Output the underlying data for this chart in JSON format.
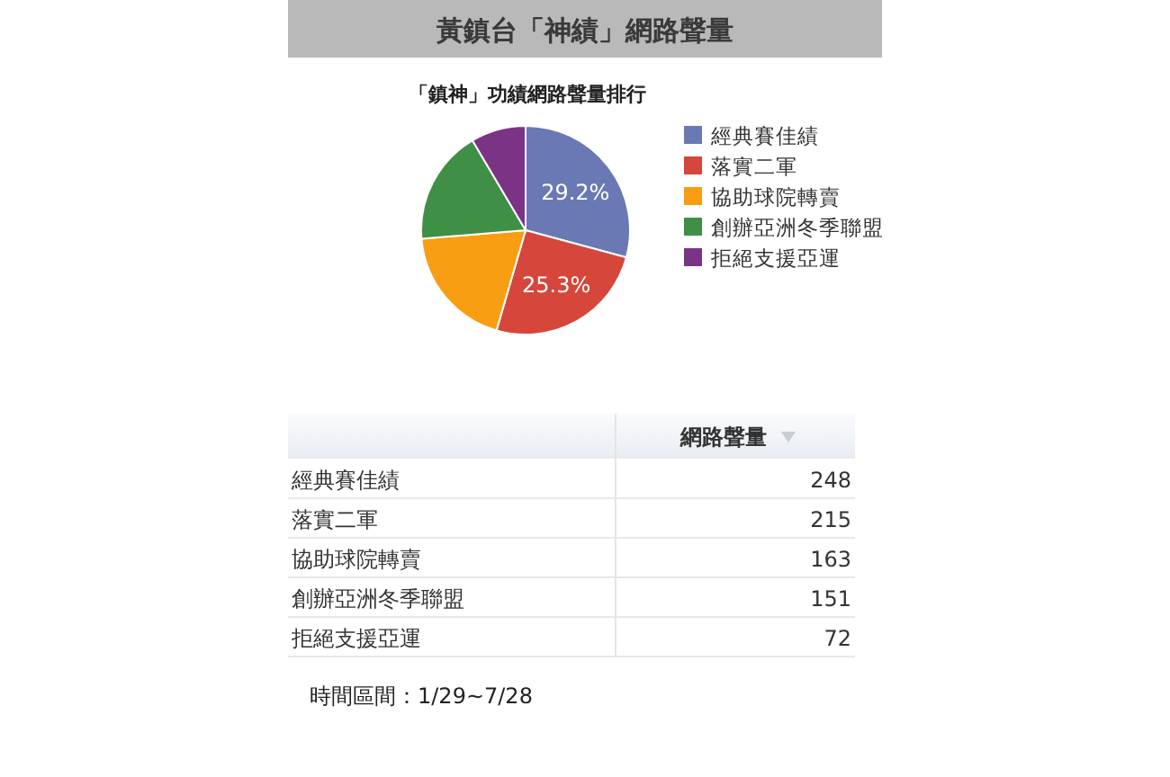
{
  "chart_data": [
    {
      "type": "pie",
      "title": "黃鎮台「神績」網路聲量",
      "subtitle": "「鎮神」功績網路聲量排行",
      "categories": [
        "經典賽佳績",
        "落實二軍",
        "協助球院轉賣",
        "創辦亞洲冬季聯盟",
        "拒絕支援亞運"
      ],
      "values": [
        29.2,
        25.3,
        19.2,
        17.8,
        8.5
      ],
      "colors": [
        "#6a78b4",
        "#d6463a",
        "#f99d12",
        "#3f8f47",
        "#7b3386"
      ],
      "value_labels": [
        "29.2%",
        "25.3%",
        null,
        null,
        null
      ],
      "legend": "right"
    },
    {
      "type": "other",
      "ylabel": "網路聲量",
      "categories": [
        "經典賽佳績",
        "落實二軍",
        "協助球院轉賣",
        "創辦亞洲冬季聯盟",
        "拒絕支援亞運"
      ],
      "values": [
        248,
        215,
        163,
        151,
        72
      ],
      "data_labels": true,
      "annotations": [
        "時間區間：1/29~7/28"
      ]
    }
  ]
}
